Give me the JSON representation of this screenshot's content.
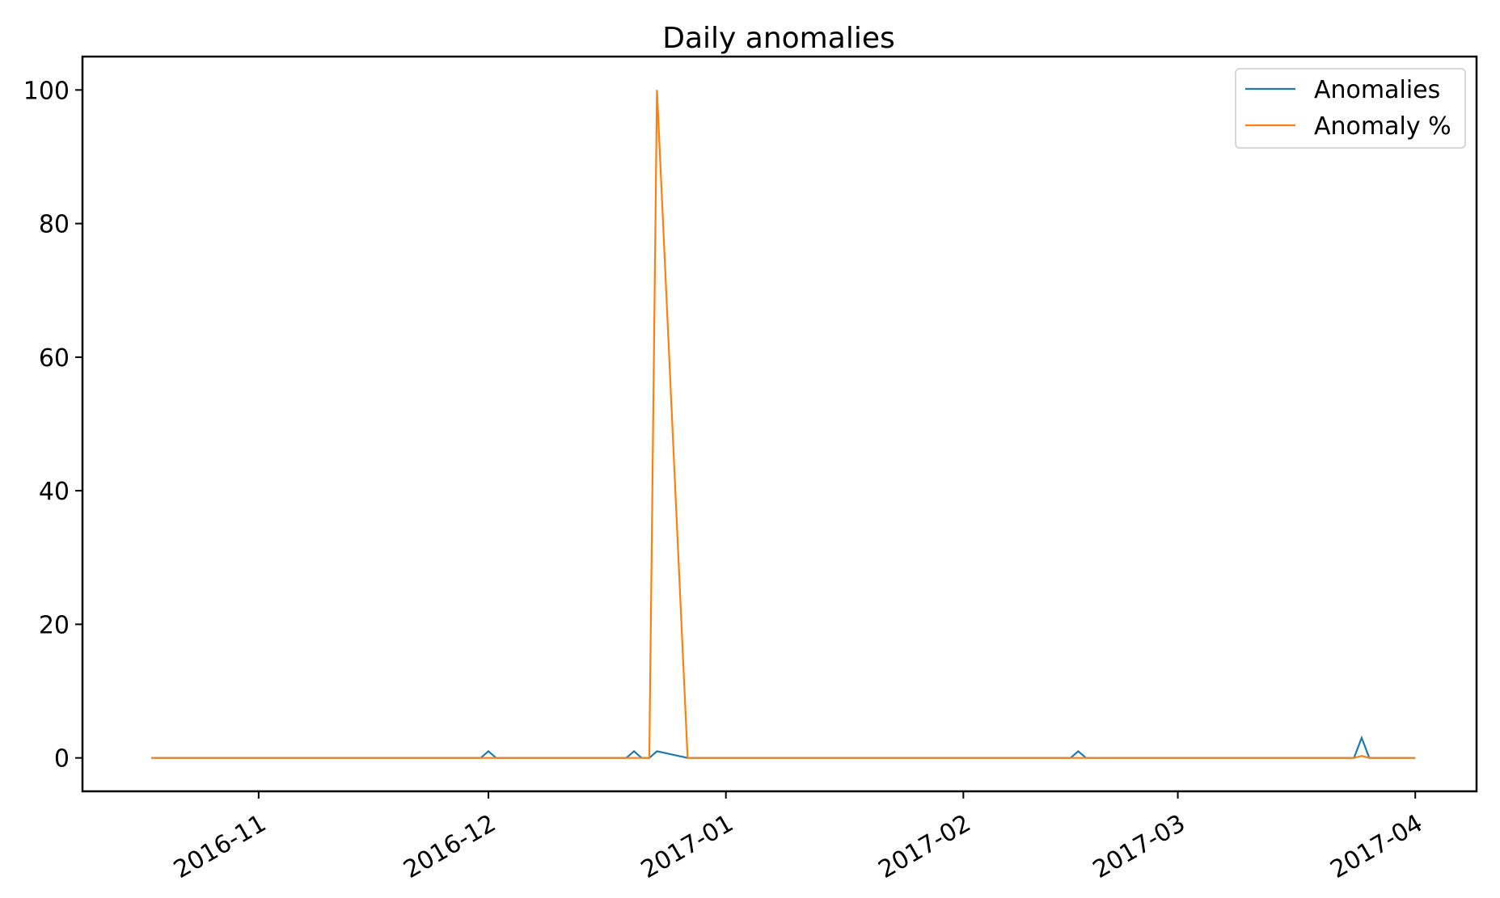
{
  "chart_data": {
    "type": "line",
    "title": "Daily anomalies",
    "xlabel": "",
    "ylabel": "",
    "ylim": [
      -5,
      105
    ],
    "xlim": [
      "2016-10-09",
      "2017-04-09"
    ],
    "x_ticks": [
      "2016-11",
      "2016-12",
      "2017-01",
      "2017-02",
      "2017-03",
      "2017-04"
    ],
    "y_ticks": [
      0,
      20,
      40,
      60,
      80,
      100
    ],
    "grid": false,
    "legend_position": "top-right",
    "series": [
      {
        "name": "Anomalies",
        "color": "#1f77b4",
        "points": [
          [
            "2016-10-18",
            0
          ],
          [
            "2016-11-30",
            0
          ],
          [
            "2016-12-01",
            1
          ],
          [
            "2016-12-02",
            0
          ],
          [
            "2016-12-19",
            0
          ],
          [
            "2016-12-20",
            1
          ],
          [
            "2016-12-21",
            0
          ],
          [
            "2016-12-22",
            0
          ],
          [
            "2016-12-23",
            1
          ],
          [
            "2016-12-27",
            0
          ],
          [
            "2017-02-15",
            0
          ],
          [
            "2017-02-16",
            1
          ],
          [
            "2017-02-17",
            0
          ],
          [
            "2017-03-24",
            0
          ],
          [
            "2017-03-25",
            3
          ],
          [
            "2017-03-26",
            0
          ],
          [
            "2017-04-01",
            0
          ]
        ]
      },
      {
        "name": "Anomaly %",
        "color": "#ff7f0e",
        "points": [
          [
            "2016-10-18",
            0
          ],
          [
            "2016-12-22",
            0
          ],
          [
            "2016-12-23",
            100
          ],
          [
            "2016-12-27",
            0
          ],
          [
            "2017-03-24",
            0
          ],
          [
            "2017-03-25",
            0.3
          ],
          [
            "2017-03-26",
            0
          ],
          [
            "2017-04-01",
            0
          ]
        ]
      }
    ]
  }
}
